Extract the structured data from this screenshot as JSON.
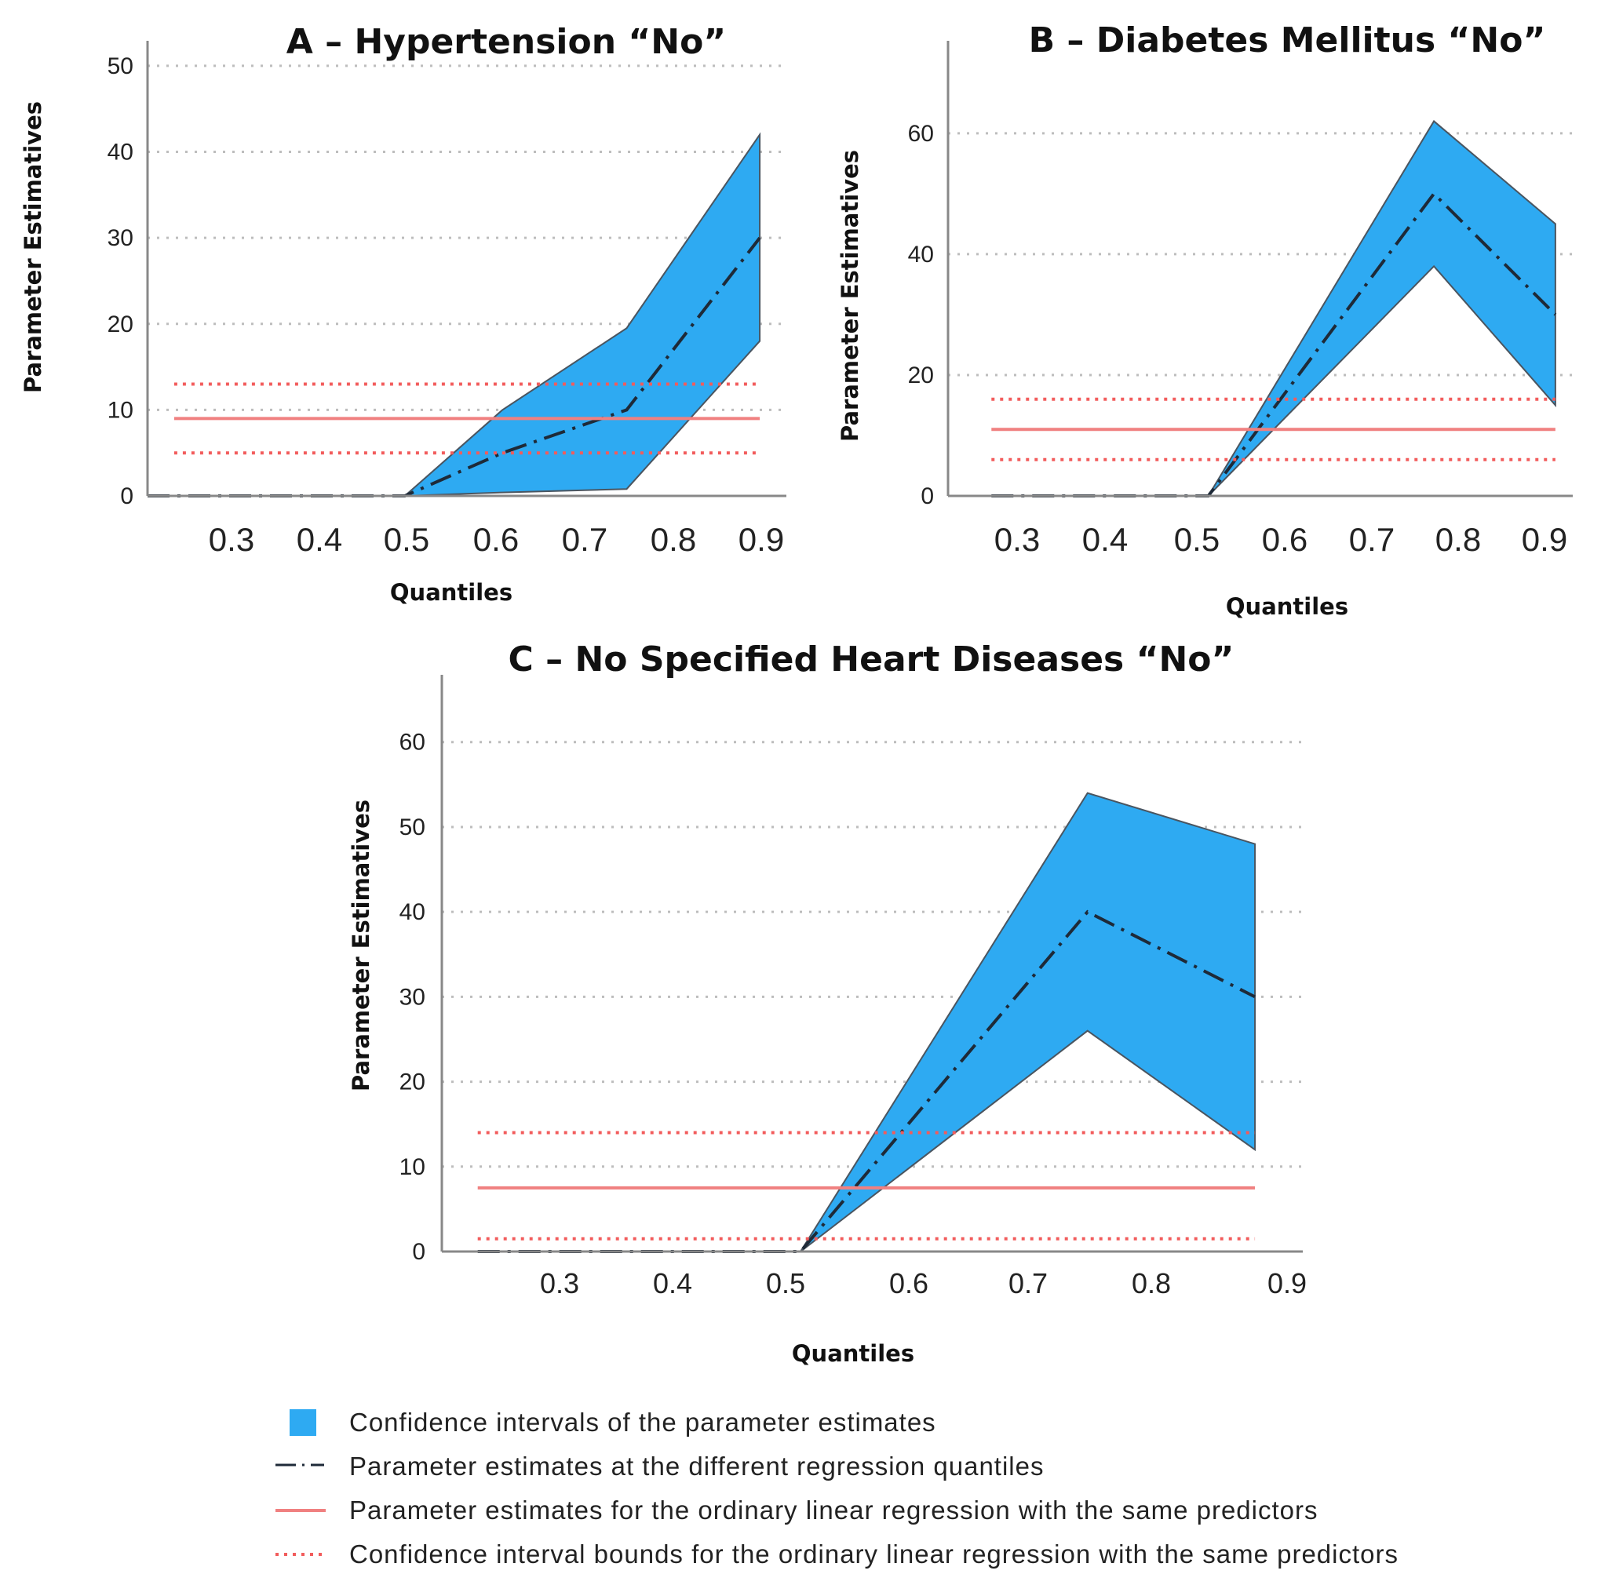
{
  "colors": {
    "ci_fill": "#2EAAF2",
    "ci_stroke": "#4A5560",
    "quantile_line": "#1E2A38",
    "ols_line": "#F08080",
    "ols_ci": "#F25C5C",
    "grid": "#BDBDBD",
    "axis": "#888888"
  },
  "chart_data": [
    {
      "id": "A",
      "type": "area",
      "title": "A – Hypertension “No”",
      "xlabel": "Quantiles",
      "ylabel": "Parameter Estimatives",
      "x_ticks": [
        "0.3",
        "0.4",
        "0.5",
        "0.6",
        "0.7",
        "0.8",
        "0.9"
      ],
      "y_ticks": [
        0,
        10,
        20,
        30,
        40,
        50
      ],
      "xlim": [
        0.2,
        0.92
      ],
      "ylim": [
        0,
        52
      ],
      "x": [
        0.2,
        0.3,
        0.4,
        0.49,
        0.6,
        0.74,
        0.89
      ],
      "estimates": [
        0,
        0,
        0,
        0,
        5,
        10,
        30
      ],
      "ci_lower": [
        0,
        0,
        0,
        0,
        0.4,
        0.8,
        18
      ],
      "ci_upper": [
        0,
        0,
        0,
        0,
        10,
        19.5,
        42
      ],
      "ols_x_range": [
        0.23,
        0.89
      ],
      "ols_estimate": 9,
      "ols_ci": [
        5,
        13
      ]
    },
    {
      "id": "B",
      "type": "area",
      "title": "B – Diabetes Mellitus “No”",
      "xlabel": "Quantiles",
      "ylabel": "Parameter Estimatives",
      "x_ticks": [
        "0.3",
        "0.4",
        "0.5",
        "0.6",
        "0.7",
        "0.8",
        "0.9"
      ],
      "y_ticks": [
        0,
        20,
        40,
        60
      ],
      "xlim": [
        0.2,
        0.92
      ],
      "ylim": [
        0,
        74
      ],
      "x": [
        0.25,
        0.3,
        0.4,
        0.5,
        0.76,
        0.9
      ],
      "estimates": [
        0,
        0,
        0,
        0,
        50,
        30
      ],
      "ci_lower": [
        0,
        0,
        0,
        0,
        38,
        15
      ],
      "ci_upper": [
        0,
        0,
        0,
        0,
        62,
        45
      ],
      "ols_x_range": [
        0.25,
        0.9
      ],
      "ols_estimate": 11,
      "ols_ci": [
        6,
        16
      ]
    },
    {
      "id": "C",
      "type": "area",
      "title": "C – No Specified Heart Diseases “No”",
      "xlabel": "Quantiles",
      "ylabel": "Parameter Estimatives",
      "x_ticks": [
        "0.3",
        "0.4",
        "0.5",
        "0.6",
        "0.7",
        "0.8",
        "0.9"
      ],
      "y_ticks": [
        0,
        10,
        20,
        30,
        40,
        50,
        60
      ],
      "xlim": [
        0.2,
        0.92
      ],
      "ylim": [
        0,
        67
      ],
      "x": [
        0.23,
        0.3,
        0.4,
        0.5,
        0.74,
        0.88
      ],
      "estimates": [
        0,
        0,
        0,
        0,
        40,
        30
      ],
      "ci_lower": [
        0,
        0,
        0,
        0,
        26,
        12
      ],
      "ci_upper": [
        0,
        0,
        0,
        0,
        54,
        48
      ],
      "ols_x_range": [
        0.23,
        0.88
      ],
      "ols_estimate": 7.5,
      "ols_ci": [
        1.5,
        14
      ]
    }
  ],
  "legend": [
    {
      "key": "ci",
      "label": "Confidence intervals of the parameter estimates"
    },
    {
      "key": "quantile",
      "label": "Parameter estimates at the different regression quantiles"
    },
    {
      "key": "ols",
      "label": "Parameter estimates for the ordinary linear regression with the same predictors"
    },
    {
      "key": "ols_ci",
      "label": "Confidence interval bounds for the ordinary linear regression with the same predictors"
    }
  ]
}
